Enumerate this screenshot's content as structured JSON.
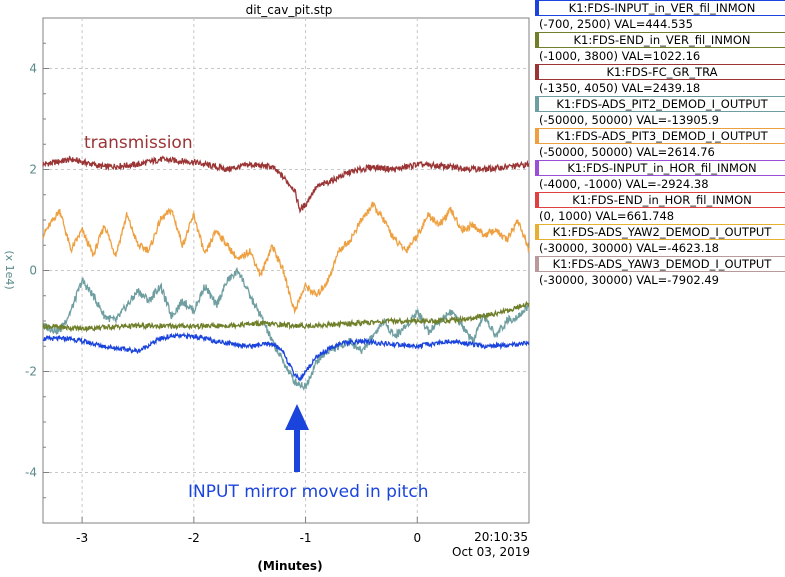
{
  "chart_data": {
    "type": "line",
    "title": "dit_cav_pit.stp",
    "xlabel": "(Minutes)",
    "ylabel": "(x 1e4)",
    "xlim": [
      -3.35,
      1.0
    ],
    "ylim": [
      -5.0,
      5.0
    ],
    "x_ticks": [
      -3,
      -2,
      -1,
      0
    ],
    "x_tick_labels": [
      "-3",
      "-2",
      "-1",
      "0"
    ],
    "y_ticks": [
      -4,
      -2,
      0,
      2,
      4
    ],
    "y_tick_labels": [
      "-4",
      "-2",
      "0",
      "2",
      "4"
    ],
    "timestamp_time": "20:10:35",
    "timestamp_date": "Oct 03, 2019",
    "grid": true,
    "annotations": {
      "transmission": "transmission",
      "input_mirror": "INPUT mirror moved in pitch"
    },
    "colors": {
      "transmission": "#9b3535",
      "input_ver": "#1a44dc",
      "end_ver": "#6f7f2a",
      "pit2": "#6f9ea0",
      "pit3": "#eea040",
      "annotation_blue": "#1a44dc",
      "axis_tick_label": "#5a8a8a",
      "grid": "#c8c8c8"
    },
    "series": [
      {
        "name": "K1:FDS-FC_GR_TRA",
        "color": "#9b3535",
        "x": [
          -3.35,
          -3.1,
          -2.8,
          -2.5,
          -2.3,
          -2.0,
          -1.7,
          -1.5,
          -1.3,
          -1.2,
          -1.1,
          -1.05,
          -1.0,
          -0.95,
          -0.9,
          -0.8,
          -0.6,
          -0.4,
          -0.2,
          0.0,
          0.3,
          0.6,
          1.0
        ],
        "y": [
          2.1,
          2.2,
          2.05,
          2.1,
          2.2,
          2.15,
          2.0,
          2.1,
          2.05,
          1.85,
          1.6,
          1.2,
          1.3,
          1.5,
          1.65,
          1.75,
          1.95,
          2.05,
          2.0,
          2.1,
          2.05,
          2.0,
          2.1
        ]
      },
      {
        "name": "K1:FDS-ADS_PIT3_DEMOD_I_OUTPUT",
        "color": "#eea040",
        "x": [
          -3.35,
          -3.2,
          -3.1,
          -3.0,
          -2.9,
          -2.8,
          -2.7,
          -2.6,
          -2.5,
          -2.4,
          -2.3,
          -2.2,
          -2.1,
          -2.0,
          -1.9,
          -1.8,
          -1.7,
          -1.6,
          -1.5,
          -1.4,
          -1.3,
          -1.2,
          -1.15,
          -1.1,
          -1.0,
          -0.9,
          -0.8,
          -0.7,
          -0.6,
          -0.5,
          -0.4,
          -0.3,
          -0.2,
          -0.1,
          0.0,
          0.1,
          0.2,
          0.3,
          0.4,
          0.5,
          0.6,
          0.7,
          0.8,
          0.9,
          1.0
        ],
        "y": [
          0.7,
          1.2,
          0.4,
          0.8,
          0.3,
          0.9,
          0.3,
          1.1,
          0.5,
          0.4,
          1.0,
          1.2,
          0.5,
          1.1,
          0.3,
          0.8,
          0.5,
          0.2,
          0.4,
          -0.1,
          0.5,
          0.0,
          -0.4,
          -0.8,
          -0.3,
          -0.5,
          -0.2,
          0.4,
          0.6,
          1.0,
          1.3,
          1.0,
          0.6,
          0.4,
          0.7,
          1.1,
          0.9,
          1.2,
          0.8,
          0.9,
          0.7,
          0.8,
          0.6,
          1.0,
          0.4
        ]
      },
      {
        "name": "K1:FDS-ADS_PIT2_DEMOD_I_OUTPUT",
        "color": "#6f9ea0",
        "x": [
          -3.35,
          -3.2,
          -3.1,
          -3.0,
          -2.9,
          -2.8,
          -2.7,
          -2.6,
          -2.5,
          -2.4,
          -2.3,
          -2.2,
          -2.1,
          -2.0,
          -1.9,
          -1.8,
          -1.7,
          -1.6,
          -1.5,
          -1.4,
          -1.3,
          -1.2,
          -1.1,
          -1.0,
          -0.9,
          -0.8,
          -0.7,
          -0.6,
          -0.5,
          -0.4,
          -0.3,
          -0.2,
          -0.1,
          0.0,
          0.1,
          0.2,
          0.3,
          0.4,
          0.5,
          0.6,
          0.7,
          0.8,
          0.9,
          1.0
        ],
        "y": [
          -1.1,
          -1.2,
          -0.8,
          -0.2,
          -0.5,
          -0.9,
          -1.0,
          -0.7,
          -0.4,
          -0.6,
          -0.3,
          -0.9,
          -0.6,
          -0.8,
          -0.3,
          -0.7,
          -0.2,
          0.0,
          -0.5,
          -0.9,
          -1.4,
          -1.8,
          -2.2,
          -2.3,
          -1.8,
          -1.6,
          -1.5,
          -1.4,
          -1.6,
          -1.3,
          -1.0,
          -1.3,
          -1.1,
          -0.8,
          -1.2,
          -1.0,
          -0.8,
          -1.1,
          -1.4,
          -0.9,
          -1.3,
          -1.0,
          -0.9,
          -0.7
        ]
      },
      {
        "name": "K1:FDS-END_in_VER_fil_INMON",
        "color": "#6f7f2a",
        "x": [
          -3.35,
          -3.0,
          -2.6,
          -2.2,
          -1.8,
          -1.4,
          -1.0,
          -0.6,
          -0.2,
          0.2,
          0.5,
          0.8,
          1.0
        ],
        "y": [
          -1.1,
          -1.15,
          -1.1,
          -1.1,
          -1.1,
          -1.05,
          -1.1,
          -1.05,
          -1.0,
          -1.0,
          -0.95,
          -0.8,
          -0.65
        ]
      },
      {
        "name": "K1:FDS-INPUT_in_VER_fil_INMON",
        "color": "#1a44dc",
        "x": [
          -3.35,
          -3.1,
          -2.8,
          -2.5,
          -2.3,
          -2.2,
          -2.0,
          -1.8,
          -1.5,
          -1.3,
          -1.2,
          -1.15,
          -1.1,
          -1.05,
          -1.0,
          -0.9,
          -0.7,
          -0.5,
          -0.3,
          0.0,
          0.3,
          0.6,
          1.0
        ],
        "y": [
          -1.35,
          -1.35,
          -1.5,
          -1.6,
          -1.35,
          -1.3,
          -1.3,
          -1.4,
          -1.5,
          -1.45,
          -1.6,
          -1.85,
          -2.05,
          -2.15,
          -2.0,
          -1.7,
          -1.45,
          -1.4,
          -1.45,
          -1.5,
          -1.4,
          -1.5,
          -1.45
        ]
      }
    ]
  },
  "legend": [
    {
      "name": "K1:FDS-INPUT_in_VER_fil_INMON",
      "range": "(-700, 2500) VAL=444.535",
      "color": "#1a44dc"
    },
    {
      "name": "K1:FDS-END_in_VER_fil_INMON",
      "range": "(-1000, 3800) VAL=1022.16",
      "color": "#6f7f2a"
    },
    {
      "name": "K1:FDS-FC_GR_TRA",
      "range": "(-1350, 4050) VAL=2439.18",
      "color": "#9b3535"
    },
    {
      "name": "K1:FDS-ADS_PIT2_DEMOD_I_OUTPUT",
      "range": "(-50000, 50000) VAL=-13905.9",
      "color": "#6f9ea0"
    },
    {
      "name": "K1:FDS-ADS_PIT3_DEMOD_I_OUTPUT",
      "range": "(-50000, 50000) VAL=2614.76",
      "color": "#eea040"
    },
    {
      "name": "K1:FDS-INPUT_in_HOR_fil_INMON",
      "range": "(-4000, -1000) VAL=-2924.38",
      "color": "#9a4fd8"
    },
    {
      "name": "K1:FDS-END_in_HOR_fil_INMON",
      "range": "(0, 1000) VAL=661.748",
      "color": "#e04040"
    },
    {
      "name": "K1:FDS-ADS_YAW2_DEMOD_I_OUTPUT",
      "range": "(-30000, 30000) VAL=-4623.18",
      "color": "#e8b030"
    },
    {
      "name": "K1:FDS-ADS_YAW3_DEMOD_I_OUTPUT",
      "range": "(-30000, 30000) VAL=-7902.49",
      "color": "#b89a9a"
    }
  ]
}
